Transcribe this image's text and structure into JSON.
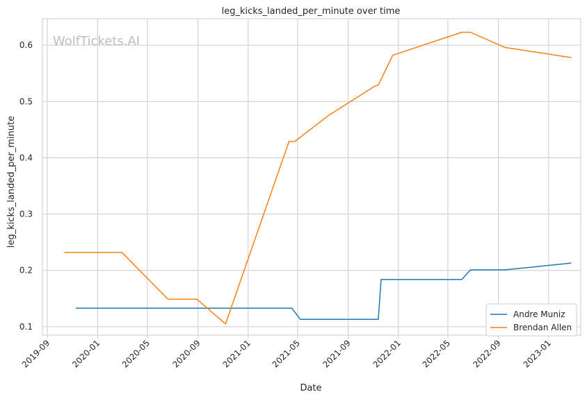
{
  "chart_data": {
    "type": "line",
    "title": "leg_kicks_landed_per_minute over time",
    "xlabel": "Date",
    "ylabel": "leg_kicks_landed_per_minute",
    "watermark": "WolfTickets.AI",
    "xlim": [
      "2019-08-20",
      "2023-03-20"
    ],
    "ylim": [
      0.085,
      0.647
    ],
    "x_ticks": [
      "2019-09",
      "2020-01",
      "2020-05",
      "2020-09",
      "2021-01",
      "2021-05",
      "2021-09",
      "2022-01",
      "2022-05",
      "2022-09",
      "2023-01"
    ],
    "y_ticks": [
      "0.1",
      "0.2",
      "0.3",
      "0.4",
      "0.5",
      "0.6"
    ],
    "grid": true,
    "legend_position": "lower-right",
    "series": [
      {
        "name": "Andre Muniz",
        "color": "#1f77b4",
        "points": [
          {
            "x": "2019-11-09",
            "y": 0.133
          },
          {
            "x": "2021-04-17",
            "y": 0.133
          },
          {
            "x": "2021-05-08",
            "y": 0.113
          },
          {
            "x": "2021-11-13",
            "y": 0.113
          },
          {
            "x": "2021-11-20",
            "y": 0.184
          },
          {
            "x": "2022-06-04",
            "y": 0.184
          },
          {
            "x": "2022-06-25",
            "y": 0.201
          },
          {
            "x": "2022-09-17",
            "y": 0.201
          },
          {
            "x": "2023-02-25",
            "y": 0.213
          }
        ]
      },
      {
        "name": "Brendan Allen",
        "color": "#ff7f0e",
        "points": [
          {
            "x": "2019-10-12",
            "y": 0.232
          },
          {
            "x": "2020-02-29",
            "y": 0.232
          },
          {
            "x": "2020-06-20",
            "y": 0.149
          },
          {
            "x": "2020-08-29",
            "y": 0.149
          },
          {
            "x": "2020-11-07",
            "y": 0.105
          },
          {
            "x": "2021-04-10",
            "y": 0.429
          },
          {
            "x": "2021-04-24",
            "y": 0.429
          },
          {
            "x": "2021-07-17",
            "y": 0.476
          },
          {
            "x": "2021-11-06",
            "y": 0.528
          },
          {
            "x": "2021-11-13",
            "y": 0.529
          },
          {
            "x": "2021-12-18",
            "y": 0.582
          },
          {
            "x": "2022-06-04",
            "y": 0.623
          },
          {
            "x": "2022-06-25",
            "y": 0.623
          },
          {
            "x": "2022-09-17",
            "y": 0.596
          },
          {
            "x": "2023-02-25",
            "y": 0.578
          }
        ]
      }
    ]
  }
}
